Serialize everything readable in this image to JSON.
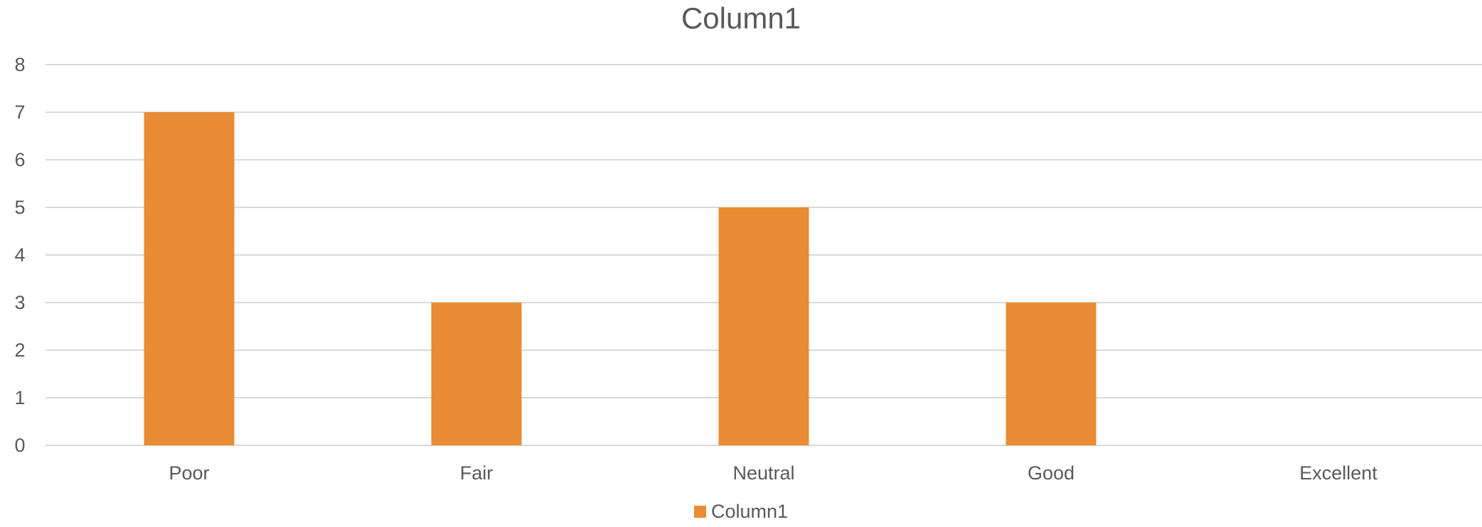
{
  "colors": {
    "series": "#E98C33",
    "grid": "#D9D9D9",
    "text": "#595959"
  },
  "chart_data": {
    "type": "bar",
    "title": "Column1",
    "categories": [
      "Poor",
      "Fair",
      "Neutral",
      "Good",
      "Excellent"
    ],
    "series": [
      {
        "name": "Column1",
        "values": [
          7,
          3,
          5,
          3,
          0
        ]
      }
    ],
    "ylim": [
      0,
      8
    ],
    "yticks": [
      0,
      1,
      2,
      3,
      4,
      5,
      6,
      7,
      8
    ],
    "xlabel": "",
    "ylabel": "",
    "grid": true,
    "legend": "bottom"
  }
}
